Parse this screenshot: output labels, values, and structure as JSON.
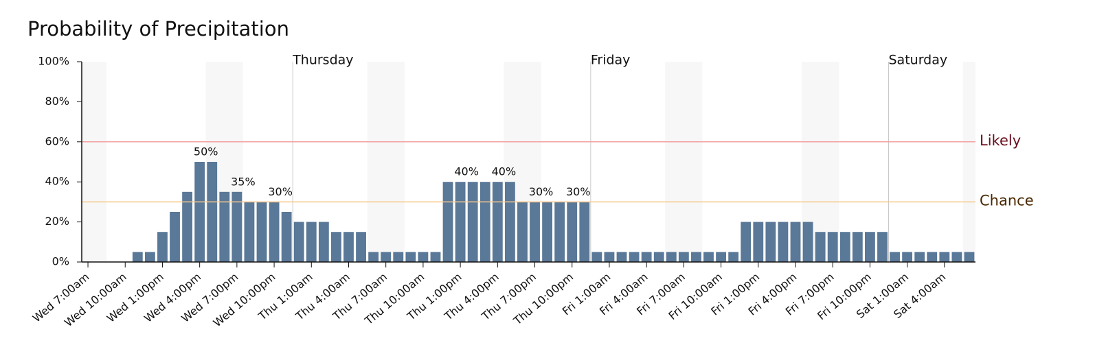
{
  "chart_data": {
    "type": "bar",
    "title": "Probability of Precipitation",
    "categories": [
      "Wed 7:00am",
      null,
      null,
      "Wed 10:00am",
      null,
      null,
      "Wed 1:00pm",
      null,
      null,
      "Wed 4:00pm",
      null,
      null,
      "Wed 7:00pm",
      null,
      null,
      "Wed 10:00pm",
      null,
      null,
      "Thu 1:00am",
      null,
      null,
      "Thu 4:00am",
      null,
      null,
      "Thu 7:00am",
      null,
      null,
      "Thu 10:00am",
      null,
      null,
      "Thu 1:00pm",
      null,
      null,
      "Thu 4:00pm",
      null,
      null,
      "Thu 7:00pm",
      null,
      null,
      "Thu 10:00pm",
      null,
      null,
      "Fri 1:00am",
      null,
      null,
      "Fri 4:00am",
      null,
      null,
      "Fri 7:00am",
      null,
      null,
      "Fri 10:00am",
      null,
      null,
      "Fri 1:00pm",
      null,
      null,
      "Fri 4:00pm",
      null,
      null,
      "Fri 7:00pm",
      null,
      null,
      "Fri 10:00pm",
      null,
      null,
      "Sat 1:00am",
      null,
      null,
      "Sat 4:00am",
      null,
      null
    ],
    "values": [
      0,
      0,
      0,
      0,
      5,
      5,
      15,
      25,
      35,
      50,
      50,
      35,
      35,
      30,
      30,
      30,
      25,
      20,
      20,
      20,
      15,
      15,
      15,
      5,
      5,
      5,
      5,
      5,
      5,
      40,
      40,
      40,
      40,
      40,
      40,
      30,
      30,
      30,
      30,
      30,
      30,
      5,
      5,
      5,
      5,
      5,
      5,
      5,
      5,
      5,
      5,
      5,
      5,
      20,
      20,
      20,
      20,
      20,
      20,
      15,
      15,
      15,
      15,
      15,
      15,
      5,
      5,
      5,
      5,
      5,
      5,
      5
    ],
    "value_labels": [
      null,
      null,
      null,
      null,
      null,
      null,
      null,
      null,
      null,
      "50%",
      null,
      null,
      "35%",
      null,
      null,
      "30%",
      null,
      null,
      null,
      null,
      null,
      null,
      null,
      null,
      null,
      null,
      null,
      null,
      null,
      null,
      "40%",
      null,
      null,
      "40%",
      null,
      null,
      "30%",
      null,
      null,
      "30%",
      null,
      null,
      null,
      null,
      null,
      null,
      null,
      null,
      null,
      null,
      null,
      null,
      null,
      null,
      null,
      null,
      null,
      null,
      null,
      null,
      null,
      null,
      null,
      null,
      null,
      null,
      null,
      null,
      null,
      null,
      null,
      null
    ],
    "color": "#5a7897",
    "ylim": [
      0,
      100
    ],
    "yticks": [
      {
        "value": 0,
        "label": "0%"
      },
      {
        "value": 20,
        "label": "20%"
      },
      {
        "value": 40,
        "label": "40%"
      },
      {
        "value": 60,
        "label": "60%"
      },
      {
        "value": 80,
        "label": "80%"
      },
      {
        "value": 100,
        "label": "100%"
      }
    ],
    "thresholds": [
      {
        "label": "Likely",
        "value": 60,
        "color": "#f2a0a0",
        "text_color": "#6b0f1f"
      },
      {
        "label": "Chance",
        "value": 30,
        "color": "#f7c888",
        "text_color": "#4a2800"
      }
    ],
    "day_markers": [
      {
        "label": "Thursday",
        "category_index": 17
      },
      {
        "label": "Friday",
        "category_index": 41
      },
      {
        "label": "Saturday",
        "category_index": 65
      }
    ]
  }
}
